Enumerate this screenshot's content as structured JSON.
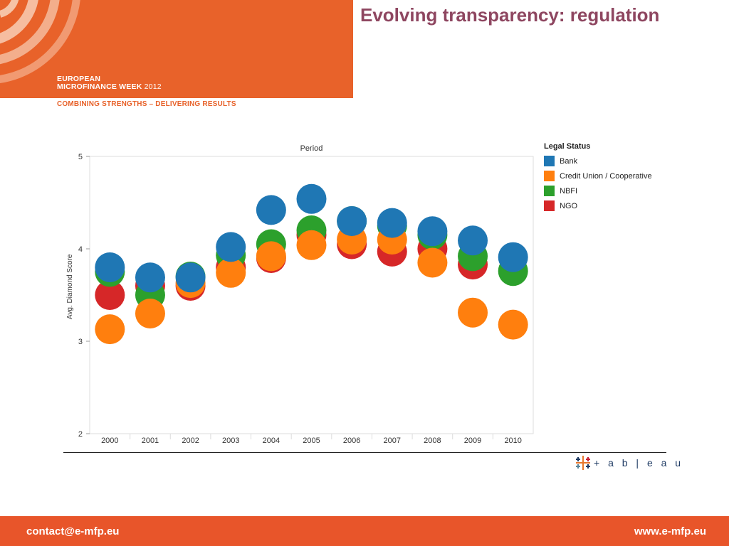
{
  "header": {
    "event_line1": "EUROPEAN",
    "event_line2": "MICROFINANCE WEEK",
    "event_year": "2012",
    "tagline": "COMBINING STRENGTHS – DELIVERING RESULTS",
    "title": "Evolving transparency: regulation",
    "brand_color": "#e8622a"
  },
  "chart_data": {
    "type": "scatter",
    "title": "Period",
    "xlabel": "",
    "ylabel": "Avg. Diamond Score",
    "categories": [
      "2000",
      "2001",
      "2002",
      "2003",
      "2004",
      "2005",
      "2006",
      "2007",
      "2008",
      "2009",
      "2010"
    ],
    "ylim": [
      2,
      5
    ],
    "yticks": [
      2,
      3,
      4,
      5
    ],
    "grid": false,
    "legend_title": "Legal Status",
    "legend_position": "right",
    "series": [
      {
        "name": "NGO",
        "color": "#d62728",
        "values": [
          3.5,
          3.6,
          3.6,
          3.8,
          3.9,
          4.15,
          4.05,
          3.97,
          4.0,
          3.83,
          null
        ]
      },
      {
        "name": "NBFI",
        "color": "#2ca02c",
        "values": [
          3.75,
          3.5,
          3.7,
          3.93,
          4.05,
          4.2,
          4.3,
          4.25,
          4.15,
          3.92,
          3.76
        ]
      },
      {
        "name": "Credit Union / Cooperative",
        "color": "#ff7f0e",
        "values": [
          3.13,
          3.3,
          3.63,
          3.74,
          3.92,
          4.04,
          4.1,
          4.1,
          3.85,
          3.31,
          3.18
        ]
      },
      {
        "name": "Bank",
        "color": "#1f77b4",
        "values": [
          3.8,
          3.69,
          3.69,
          4.02,
          4.42,
          4.54,
          4.3,
          4.28,
          4.19,
          4.09,
          3.91
        ]
      }
    ]
  },
  "legend": {
    "title": "Legal Status",
    "items": [
      {
        "label": "Bank",
        "color": "#1f77b4"
      },
      {
        "label": "Credit Union / Cooperative",
        "color": "#ff7f0e"
      },
      {
        "label": "NBFI",
        "color": "#2ca02c"
      },
      {
        "label": "NGO",
        "color": "#d62728"
      }
    ]
  },
  "logo": {
    "word": "+ a b | e a u"
  },
  "footer": {
    "email": "contact@e-mfp.eu",
    "website": "www.e-mfp.eu",
    "color": "#e8552a"
  }
}
